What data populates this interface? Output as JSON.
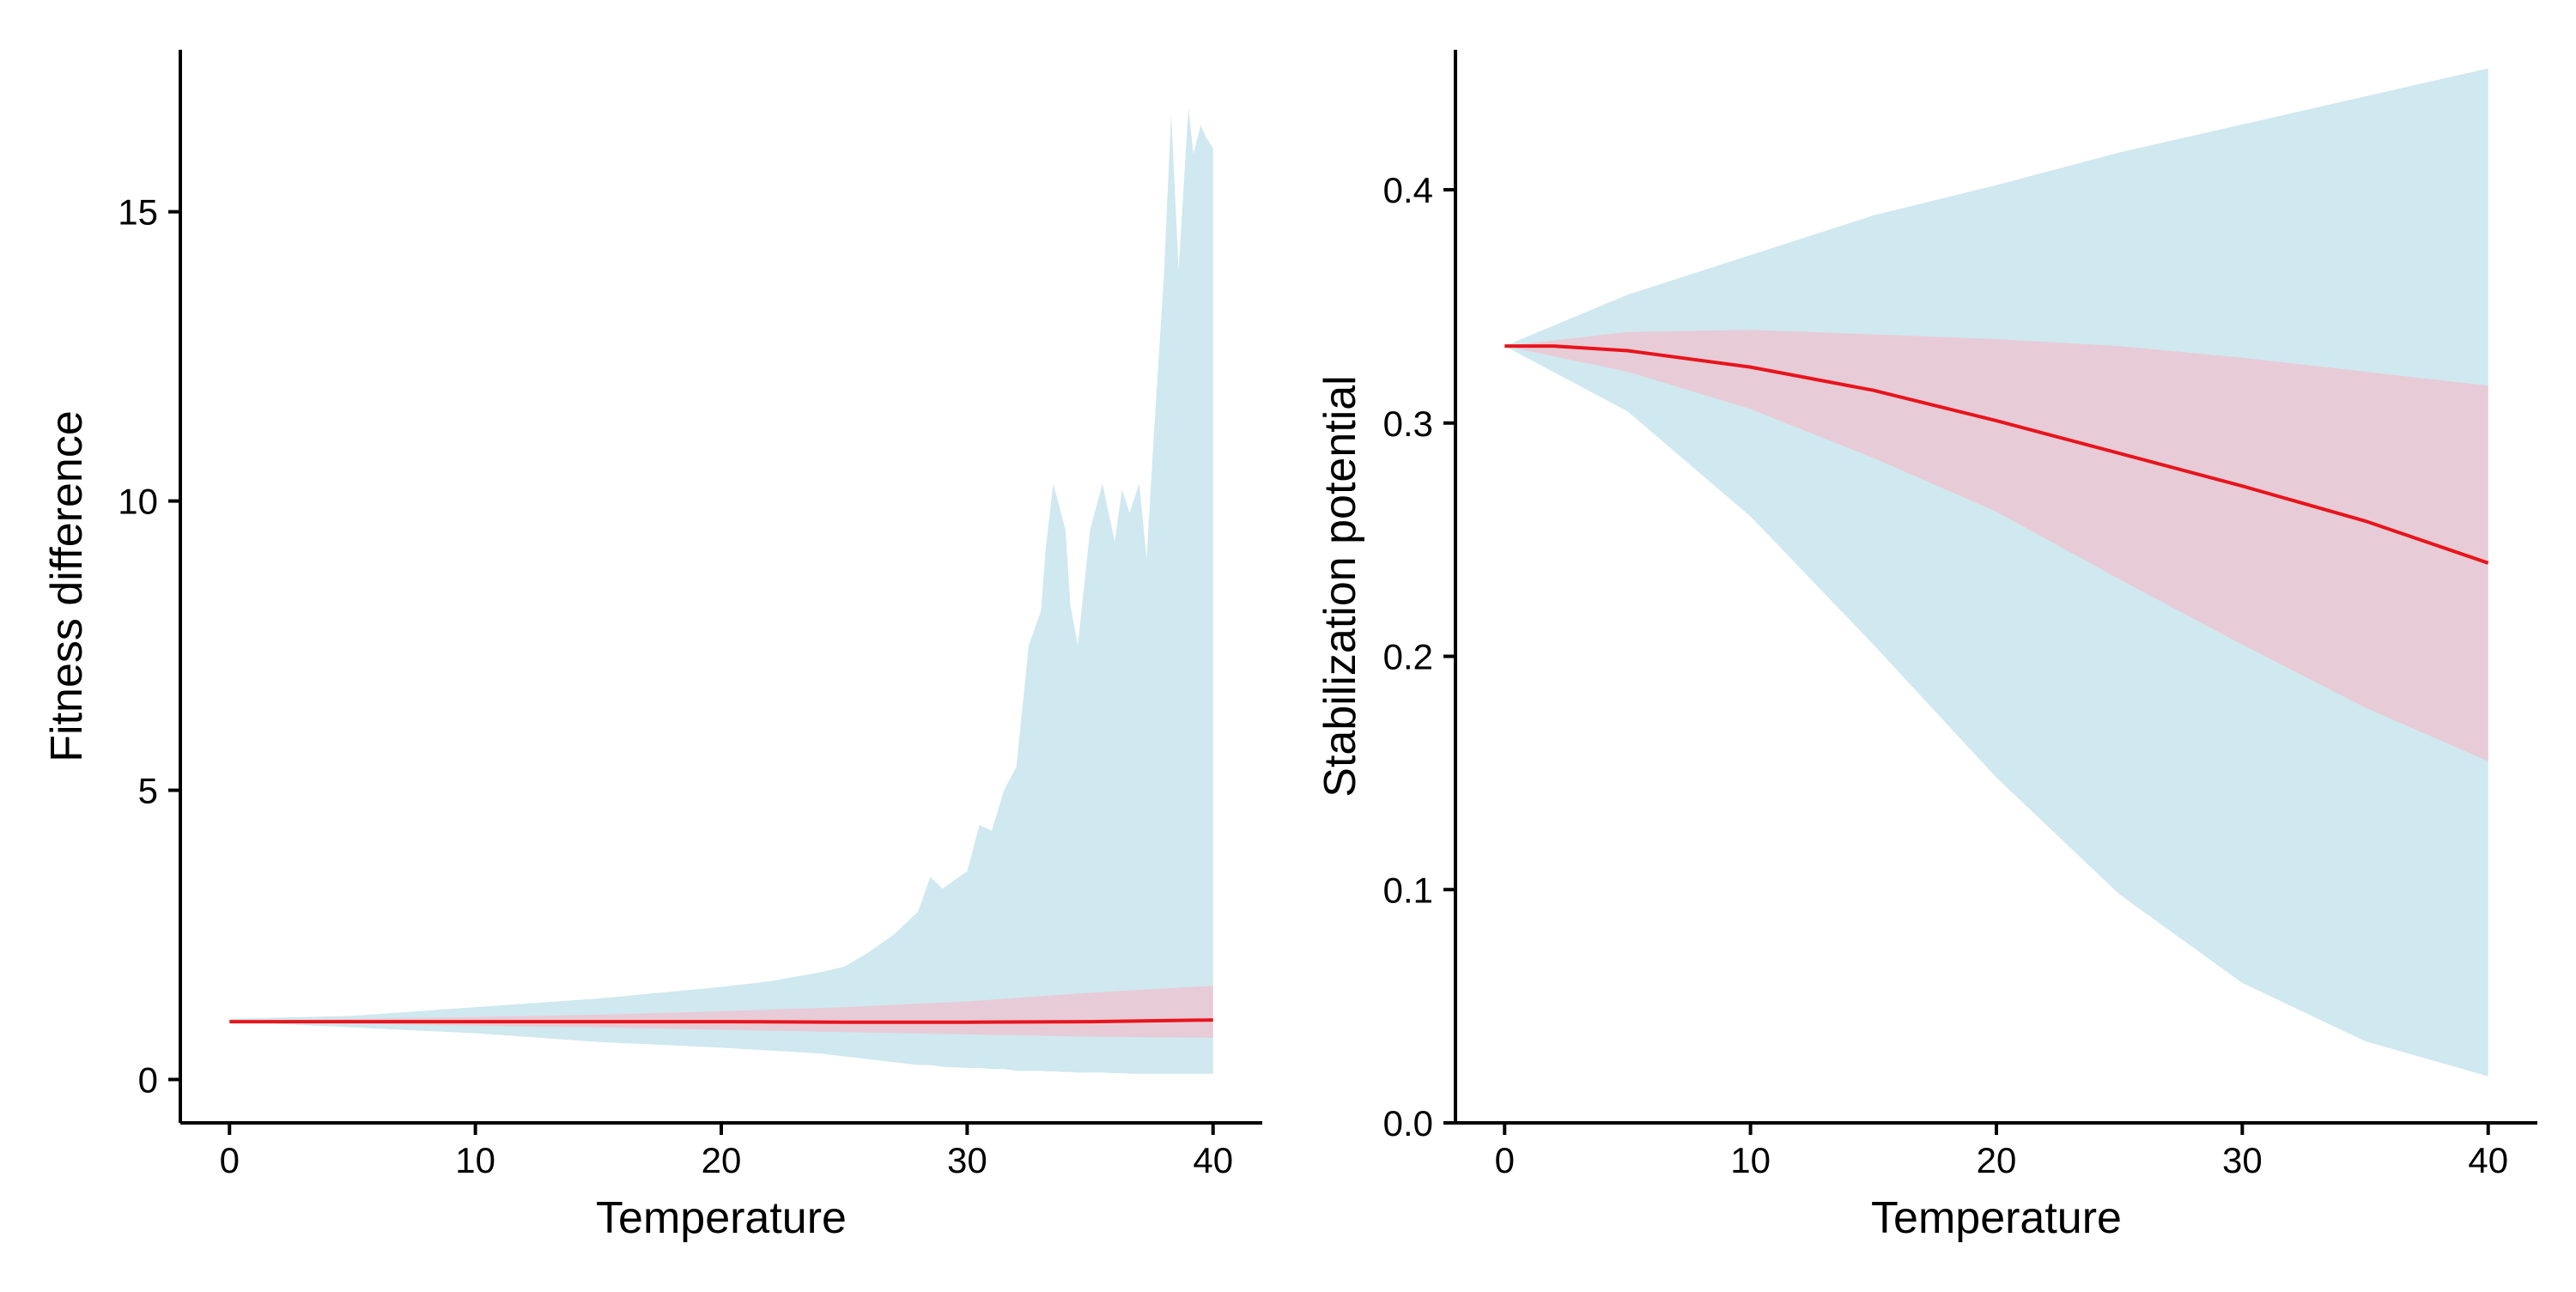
{
  "chart_data": [
    {
      "type": "area",
      "xlabel": "Temperature",
      "ylabel": "Fitness difference",
      "xlim": [
        -2,
        42
      ],
      "ylim": [
        -0.75,
        17.8
      ],
      "x_ticks": [
        0,
        10,
        20,
        30,
        40
      ],
      "y_ticks": [
        0,
        5,
        10,
        15
      ],
      "grid": false,
      "colors": {
        "outer_band": "#d0e8ef",
        "inner_band": "#e7ccd7",
        "line": "#e8141c",
        "axis": "#000000"
      },
      "series": [
        {
          "role": "outer_band",
          "x": [
            0,
            5,
            10,
            15,
            20,
            22,
            24,
            25,
            26,
            27,
            28,
            28.5,
            29,
            30,
            30.5,
            31,
            31.5,
            32,
            32.5,
            33,
            33.2,
            33.5,
            34,
            34.2,
            34.5,
            35,
            35.5,
            36,
            36.3,
            36.6,
            37,
            37.3,
            37.6,
            38,
            38.3,
            38.6,
            39,
            39.2,
            39.5,
            39.7,
            40
          ],
          "upper": [
            1.05,
            1.1,
            1.25,
            1.4,
            1.6,
            1.7,
            1.85,
            1.95,
            2.2,
            2.5,
            2.9,
            3.5,
            3.3,
            3.6,
            4.4,
            4.3,
            5.0,
            5.4,
            7.5,
            8.1,
            9.2,
            10.3,
            9.5,
            8.2,
            7.5,
            9.5,
            10.3,
            9.3,
            10.2,
            9.8,
            10.3,
            9.0,
            11.2,
            13.9,
            16.7,
            14.0,
            16.8,
            16.0,
            16.5,
            16.3,
            16.1
          ],
          "lower": [
            1.0,
            0.9,
            0.8,
            0.65,
            0.55,
            0.5,
            0.45,
            0.4,
            0.35,
            0.3,
            0.25,
            0.25,
            0.22,
            0.2,
            0.2,
            0.18,
            0.18,
            0.15,
            0.15,
            0.15,
            0.14,
            0.14,
            0.13,
            0.13,
            0.12,
            0.12,
            0.12,
            0.11,
            0.11,
            0.1,
            0.1,
            0.1,
            0.1,
            0.1,
            0.1,
            0.1,
            0.1,
            0.1,
            0.1,
            0.1,
            0.1
          ]
        },
        {
          "role": "inner_band",
          "x": [
            0,
            5,
            10,
            15,
            20,
            25,
            30,
            35,
            40
          ],
          "upper": [
            1.0,
            1.05,
            1.08,
            1.12,
            1.18,
            1.25,
            1.35,
            1.5,
            1.62
          ],
          "lower": [
            1.0,
            0.97,
            0.93,
            0.9,
            0.86,
            0.82,
            0.78,
            0.74,
            0.72
          ]
        },
        {
          "role": "line",
          "x": [
            0,
            5,
            10,
            15,
            20,
            25,
            30,
            35,
            40
          ],
          "y": [
            1.0,
            1.0,
            1.0,
            1.0,
            1.0,
            0.99,
            0.99,
            1.0,
            1.03
          ]
        }
      ]
    },
    {
      "type": "area",
      "xlabel": "Temperature",
      "ylabel": "Stabilization potential",
      "xlim": [
        -2,
        42
      ],
      "ylim": [
        0,
        0.46
      ],
      "x_ticks": [
        0,
        10,
        20,
        30,
        40
      ],
      "y_ticks": [
        0.0,
        0.1,
        0.2,
        0.3,
        0.4
      ],
      "y_tick_labels": [
        "0.0",
        "0.1",
        "0.2",
        "0.3",
        "0.4"
      ],
      "grid": false,
      "colors": {
        "outer_band": "#d0e8ef",
        "inner_band": "#e7ccd7",
        "line": "#e8141c",
        "axis": "#000000"
      },
      "series": [
        {
          "role": "outer_band",
          "x": [
            0,
            5,
            10,
            15,
            20,
            25,
            30,
            35,
            40
          ],
          "upper": [
            0.333,
            0.355,
            0.372,
            0.389,
            0.402,
            0.416,
            0.428,
            0.44,
            0.452
          ],
          "lower": [
            0.333,
            0.305,
            0.26,
            0.205,
            0.148,
            0.098,
            0.06,
            0.035,
            0.02
          ]
        },
        {
          "role": "inner_band",
          "x": [
            0,
            5,
            10,
            15,
            20,
            25,
            30,
            35,
            40
          ],
          "upper": [
            0.333,
            0.339,
            0.34,
            0.338,
            0.336,
            0.333,
            0.328,
            0.322,
            0.316
          ],
          "lower": [
            0.333,
            0.322,
            0.306,
            0.285,
            0.262,
            0.233,
            0.205,
            0.178,
            0.155
          ]
        },
        {
          "role": "line",
          "x": [
            0,
            2,
            5,
            10,
            15,
            20,
            25,
            30,
            35,
            40
          ],
          "y": [
            0.333,
            0.333,
            0.331,
            0.324,
            0.314,
            0.301,
            0.287,
            0.273,
            0.258,
            0.24
          ]
        }
      ]
    }
  ]
}
